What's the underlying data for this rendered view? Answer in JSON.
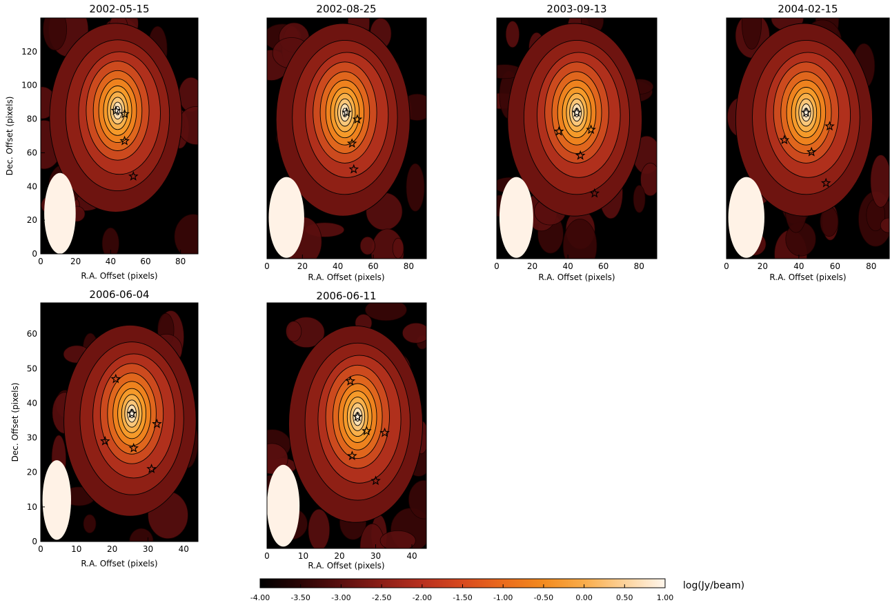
{
  "figure": {
    "colorbar_label": "log(Jy/beam)"
  },
  "chart_data": [
    {
      "type": "heatmap",
      "title": "2002-05-15",
      "xlabel": "R.A. Offset (pixels)",
      "ylabel": "Dec. Offset (pixels)",
      "xlim": [
        0,
        90
      ],
      "ylim": [
        0,
        140
      ],
      "xticks": [
        0,
        20,
        40,
        60,
        80
      ],
      "yticks": [
        0,
        20,
        40,
        60,
        80,
        100,
        120
      ],
      "peak": [
        44,
        85
      ],
      "stars": [
        [
          43,
          85
        ],
        [
          48,
          83
        ],
        [
          48,
          67
        ],
        [
          53,
          46
        ]
      ],
      "beam": {
        "x": 11,
        "y": 24,
        "width": 18,
        "height": 48
      }
    },
    {
      "type": "heatmap",
      "title": "2002-08-25",
      "xlabel": "R.A. Offset (pixels)",
      "ylabel": "",
      "xlim": [
        0,
        90
      ],
      "ylim": [
        0,
        140
      ],
      "xticks": [
        0,
        20,
        40,
        60,
        80
      ],
      "yticks": [],
      "peak": [
        44,
        85
      ],
      "stars": [
        [
          45,
          85
        ],
        [
          51,
          81
        ],
        [
          48,
          67
        ],
        [
          49,
          52
        ]
      ],
      "beam": {
        "x": 11,
        "y": 24,
        "width": 20,
        "height": 47
      }
    },
    {
      "type": "heatmap",
      "title": "2003-09-13",
      "xlabel": "R.A. Offset (pixels)",
      "ylabel": "",
      "xlim": [
        0,
        90
      ],
      "ylim": [
        0,
        140
      ],
      "xticks": [
        0,
        20,
        40,
        60,
        80
      ],
      "yticks": [],
      "peak": [
        45,
        85
      ],
      "stars": [
        [
          45,
          85
        ],
        [
          35,
          74
        ],
        [
          53,
          75
        ],
        [
          47,
          60
        ],
        [
          55,
          38
        ]
      ],
      "beam": {
        "x": 11,
        "y": 24,
        "width": 19,
        "height": 47
      }
    },
    {
      "type": "heatmap",
      "title": "2004-02-15",
      "xlabel": "R.A. Offset (pixels)",
      "ylabel": "",
      "xlim": [
        0,
        90
      ],
      "ylim": [
        0,
        140
      ],
      "xticks": [
        0,
        20,
        40,
        60,
        80
      ],
      "yticks": [],
      "peak": [
        44,
        85
      ],
      "stars": [
        [
          44,
          85
        ],
        [
          57,
          77
        ],
        [
          47,
          62
        ],
        [
          32,
          69
        ],
        [
          55,
          44
        ]
      ],
      "beam": {
        "x": 11,
        "y": 24,
        "width": 20,
        "height": 47
      }
    },
    {
      "type": "heatmap",
      "title": "2006-06-04",
      "xlabel": "R.A. Offset (pixels)",
      "ylabel": "Dec. Offset (pixels)",
      "xlim": [
        0,
        44
      ],
      "ylim": [
        0,
        69
      ],
      "xticks": [
        0,
        10,
        20,
        30,
        40
      ],
      "yticks": [
        0,
        10,
        20,
        30,
        40,
        50,
        60
      ],
      "peak": [
        25.5,
        37
      ],
      "stars": [
        [
          21,
          47
        ],
        [
          25.5,
          37
        ],
        [
          32.5,
          34
        ],
        [
          18,
          29
        ],
        [
          26,
          27
        ],
        [
          31,
          21
        ]
      ],
      "beam": {
        "x": 4.5,
        "y": 12,
        "width": 8,
        "height": 23
      }
    },
    {
      "type": "heatmap",
      "title": "2006-06-11",
      "xlabel": "R.A. Offset (pixels)",
      "ylabel": "",
      "xlim": [
        0,
        44
      ],
      "ylim": [
        0,
        69
      ],
      "xticks": [
        0,
        10,
        20,
        30,
        40
      ],
      "yticks": [],
      "peak": [
        25,
        37
      ],
      "stars": [
        [
          23,
          47
        ],
        [
          25,
          37
        ],
        [
          27.5,
          33
        ],
        [
          32.5,
          32.5
        ],
        [
          23.5,
          26
        ],
        [
          30,
          19
        ]
      ],
      "beam": {
        "x": 4.5,
        "y": 12,
        "width": 9,
        "height": 23
      }
    },
    {
      "type": "colorbar",
      "label": "log(Jy/beam)",
      "range": [
        -4.0,
        1.0
      ],
      "ticks": [
        "-4.00",
        "-3.50",
        "-3.00",
        "-2.50",
        "-2.00",
        "-1.50",
        "-1.00",
        "-0.50",
        "0.00",
        "0.50",
        "1.00"
      ],
      "colors": [
        "#000000",
        "#2a0404",
        "#5a0f0f",
        "#8c1f17",
        "#b8301f",
        "#d84a1f",
        "#ea6b1d",
        "#f38b1f",
        "#f9ac4a",
        "#fcd29a",
        "#fff6ec"
      ]
    }
  ]
}
